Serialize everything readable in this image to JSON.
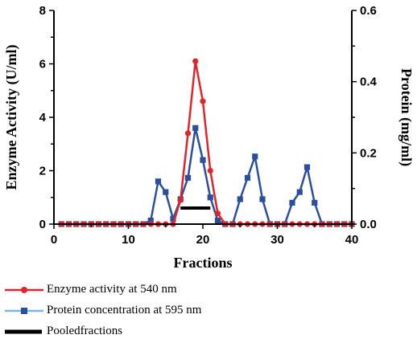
{
  "chart_data": {
    "type": "line",
    "xlabel": "Fractions",
    "ylabel_left": "Enzyme Activity (U/ml)",
    "ylabel_right": "Protein (mg/ml)",
    "xlim": [
      0,
      40
    ],
    "ylim_left": [
      0,
      8
    ],
    "ylim_right": [
      0,
      0.6
    ],
    "x_ticks": [
      "0",
      "10",
      "20",
      "30",
      "40"
    ],
    "y_ticks_left": [
      "0",
      "2",
      "4",
      "6",
      "8"
    ],
    "y_ticks_right": [
      "0.0",
      "0.2",
      "0.4",
      "0.6"
    ],
    "grid": false,
    "legend_placement": "bottom",
    "series": [
      {
        "name": "Enzyme activity at 540 nm",
        "axis": "left",
        "color": "#e0242b",
        "marker": "circle",
        "x": [
          1,
          2,
          3,
          4,
          5,
          6,
          7,
          8,
          9,
          10,
          11,
          12,
          13,
          14,
          15,
          16,
          17,
          18,
          19,
          20,
          21,
          22,
          23,
          24,
          25,
          26,
          27,
          28,
          29,
          30,
          31,
          32,
          33,
          34,
          35,
          36,
          37,
          38,
          39,
          40
        ],
        "y": [
          0,
          0,
          0,
          0,
          0,
          0,
          0,
          0,
          0,
          0,
          0,
          0,
          0,
          0,
          0,
          0,
          0.9,
          3.4,
          6.1,
          4.6,
          2.0,
          0.4,
          0,
          0,
          0,
          0,
          0,
          0,
          0,
          0,
          0,
          0,
          0,
          0,
          0,
          0,
          0,
          0,
          0,
          0
        ]
      },
      {
        "name": "Protein concentration at 595 nm",
        "axis": "right",
        "color": "#2b4f9e",
        "marker": "square",
        "x": [
          1,
          2,
          3,
          4,
          5,
          6,
          7,
          8,
          9,
          10,
          11,
          12,
          13,
          14,
          15,
          16,
          17,
          18,
          19,
          20,
          21,
          22,
          23,
          24,
          25,
          26,
          27,
          28,
          29,
          30,
          31,
          32,
          33,
          34,
          35,
          36,
          37,
          38,
          39,
          40
        ],
        "y": [
          0,
          0,
          0,
          0,
          0,
          0,
          0,
          0,
          0,
          0,
          0,
          0,
          0.01,
          0.12,
          0.09,
          0.015,
          0.07,
          0.13,
          0.27,
          0.18,
          0.075,
          0.01,
          0,
          0,
          0.07,
          0.13,
          0.19,
          0.07,
          0,
          0,
          0,
          0.06,
          0.09,
          0.16,
          0.06,
          0,
          0,
          0,
          0,
          0
        ]
      }
    ],
    "pooled": {
      "name": "Pooledfractions",
      "x_range": [
        17,
        21
      ],
      "y": 0.6,
      "axis": "left",
      "color": "#000000"
    }
  }
}
